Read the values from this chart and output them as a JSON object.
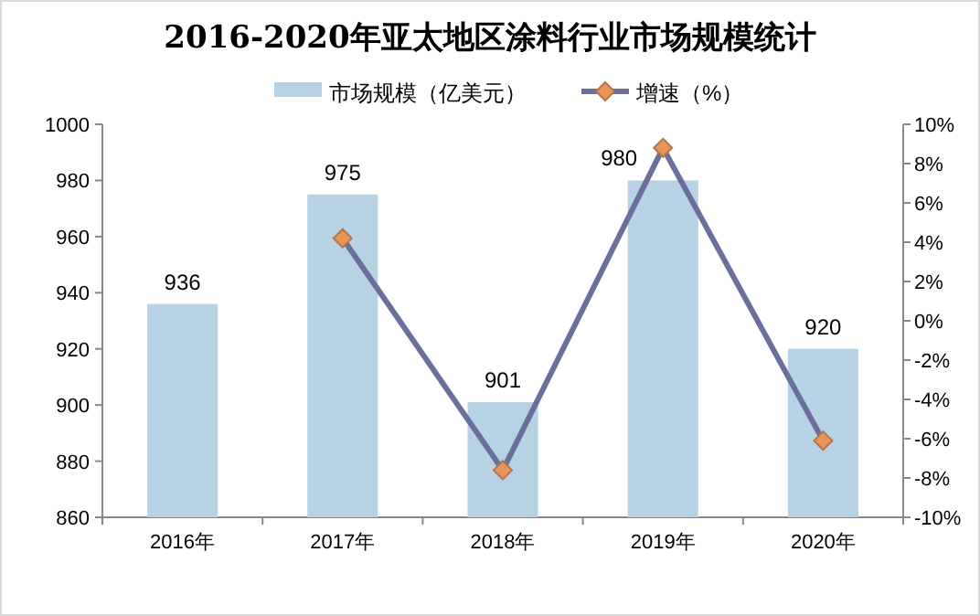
{
  "chart_data": {
    "type": "bar",
    "title": "2016-2020年亚太地区涂料行业市场规模统计",
    "categories": [
      "2016年",
      "2017年",
      "2018年",
      "2019年",
      "2020年"
    ],
    "series": [
      {
        "name": "市场规模（亿美元）",
        "color": "#b7d2e3",
        "values": [
          936,
          975,
          901,
          980,
          920
        ],
        "value_labels": [
          "936",
          "975",
          "901",
          "980",
          "920"
        ]
      },
      {
        "name": "增速（%）",
        "type": "line",
        "axis": "y2",
        "color": "#6b6f9b",
        "marker": "diamond",
        "values": [
          null,
          4.2,
          -7.6,
          8.8,
          -6.1
        ]
      }
    ],
    "ylim": [
      860,
      1000
    ],
    "yticks": [
      860,
      880,
      900,
      920,
      940,
      960,
      980,
      1000
    ],
    "y2lim": [
      -10,
      10
    ],
    "y2ticks": [
      {
        "value": -10,
        "label": "-10%"
      },
      {
        "value": -8,
        "label": "-8%"
      },
      {
        "value": -6,
        "label": "-6%"
      },
      {
        "value": -4,
        "label": "-4%"
      },
      {
        "value": -2,
        "label": "-2%"
      },
      {
        "value": 0,
        "label": "0%"
      },
      {
        "value": 2,
        "label": "2%"
      },
      {
        "value": 4,
        "label": "4%"
      },
      {
        "value": 6,
        "label": "6%"
      },
      {
        "value": 8,
        "label": "8%"
      },
      {
        "value": 10,
        "label": "10%"
      }
    ],
    "legend": "top"
  }
}
